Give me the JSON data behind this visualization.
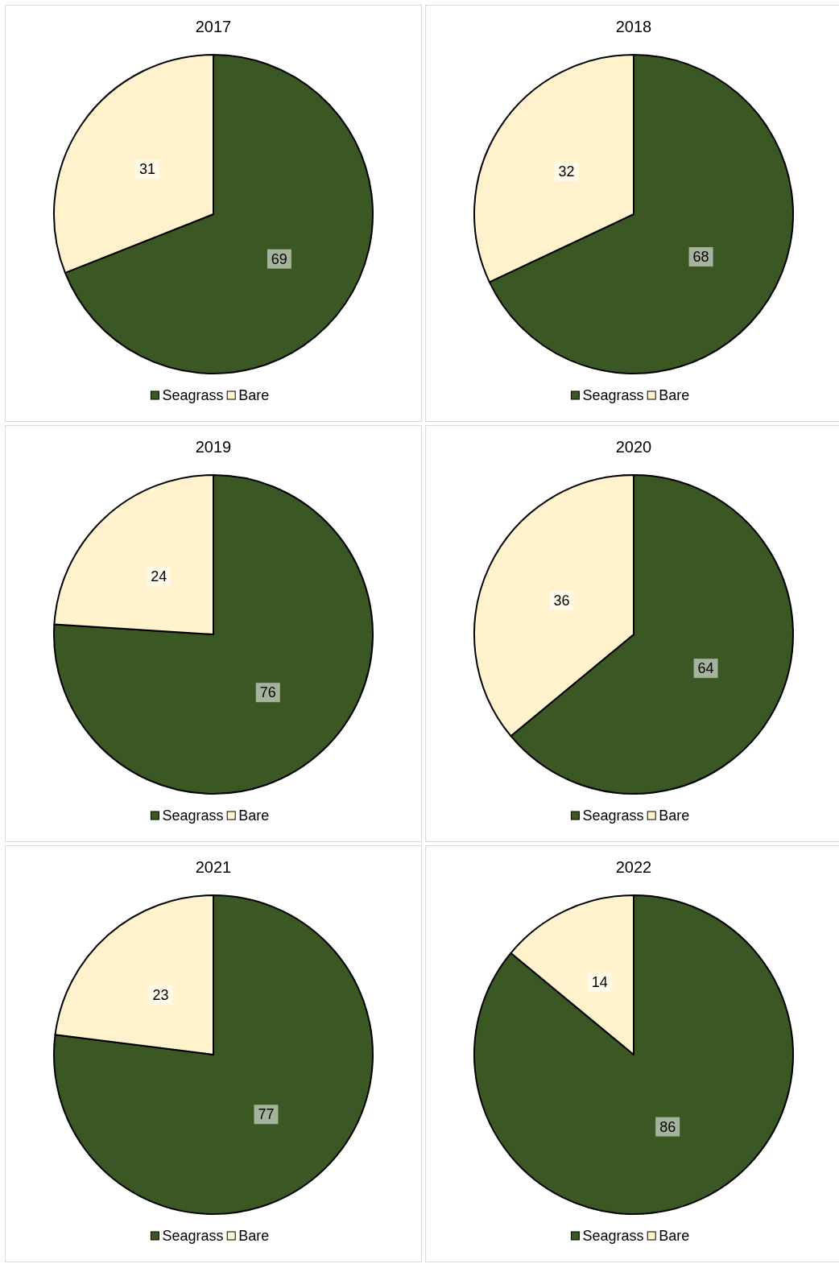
{
  "chart_data": [
    {
      "type": "pie",
      "title": "2017",
      "categories": [
        "Seagrass",
        "Bare"
      ],
      "values": [
        69,
        31
      ],
      "colors": [
        "#3a5724",
        "#fff2cc"
      ],
      "data_labels": true,
      "legend": "bottom"
    },
    {
      "type": "pie",
      "title": "2018",
      "categories": [
        "Seagrass",
        "Bare"
      ],
      "values": [
        68,
        32
      ],
      "colors": [
        "#3a5724",
        "#fff2cc"
      ],
      "data_labels": true,
      "legend": "bottom"
    },
    {
      "type": "pie",
      "title": "2019",
      "categories": [
        "Seagrass",
        "Bare"
      ],
      "values": [
        76,
        24
      ],
      "colors": [
        "#3a5724",
        "#fff2cc"
      ],
      "data_labels": true,
      "legend": "bottom"
    },
    {
      "type": "pie",
      "title": "2020",
      "categories": [
        "Seagrass",
        "Bare"
      ],
      "values": [
        64,
        36
      ],
      "colors": [
        "#3a5724",
        "#fff2cc"
      ],
      "data_labels": true,
      "legend": "bottom"
    },
    {
      "type": "pie",
      "title": "2021",
      "categories": [
        "Seagrass",
        "Bare"
      ],
      "values": [
        77,
        23
      ],
      "colors": [
        "#3a5724",
        "#fff2cc"
      ],
      "data_labels": true,
      "legend": "bottom"
    },
    {
      "type": "pie",
      "title": "2022",
      "categories": [
        "Seagrass",
        "Bare"
      ],
      "values": [
        86,
        14
      ],
      "colors": [
        "#3a5724",
        "#fff2cc"
      ],
      "data_labels": true,
      "legend": "bottom"
    }
  ]
}
